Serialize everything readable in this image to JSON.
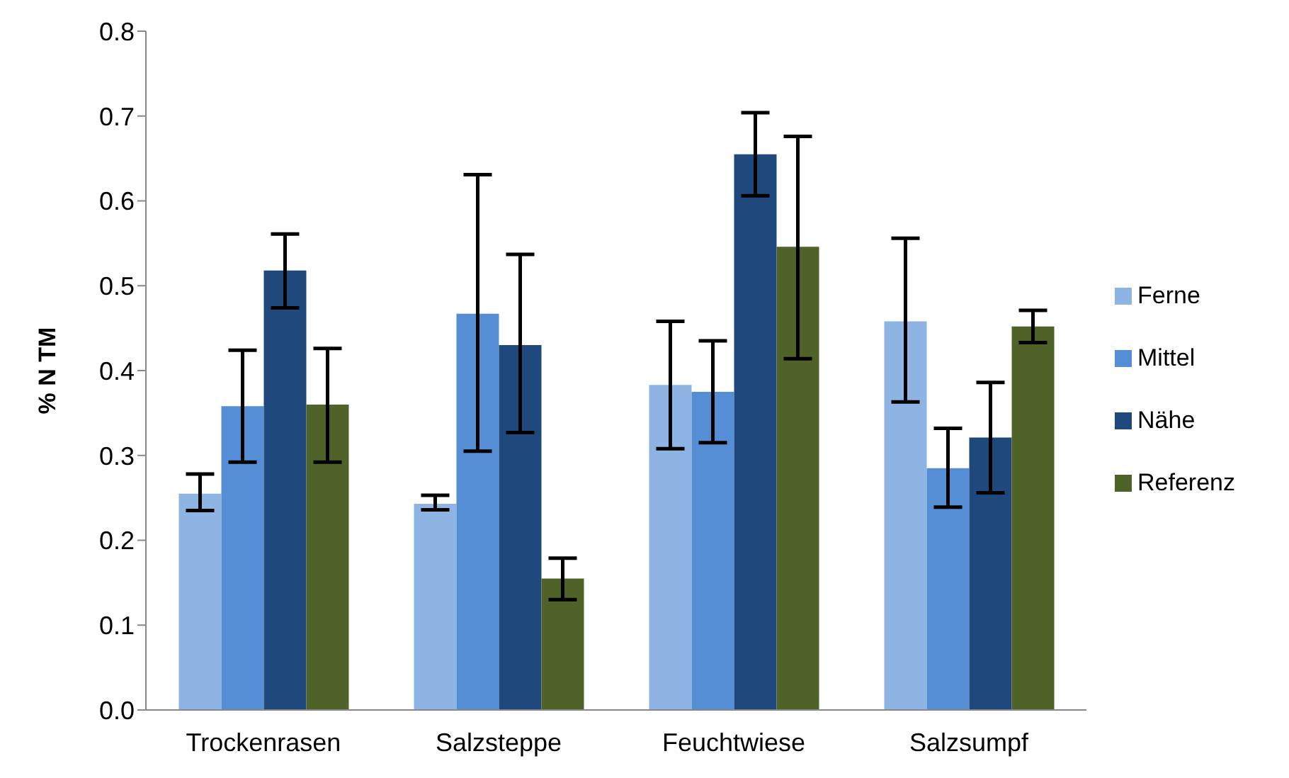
{
  "chart_data": {
    "type": "bar",
    "ylabel": "% N TM",
    "categories": [
      "Trockenrasen",
      "Salzsteppe",
      "Feuchtwiese",
      "Salzsumpf"
    ],
    "series": [
      {
        "name": "Ferne",
        "color": "#8eb4e3",
        "values": [
          0.255,
          0.243,
          0.383,
          0.458
        ],
        "errors": [
          [
            0.235,
            0.278
          ],
          [
            0.236,
            0.253
          ],
          [
            0.308,
            0.458
          ],
          [
            0.363,
            0.556
          ]
        ]
      },
      {
        "name": "Mittel",
        "color": "#558ed5",
        "values": [
          0.358,
          0.467,
          0.375,
          0.285
        ],
        "errors": [
          [
            0.292,
            0.424
          ],
          [
            0.305,
            0.631
          ],
          [
            0.315,
            0.435
          ],
          [
            0.239,
            0.332
          ]
        ]
      },
      {
        "name": "Nähe",
        "color": "#1f497d",
        "values": [
          0.518,
          0.43,
          0.655,
          0.321
        ],
        "errors": [
          [
            0.474,
            0.561
          ],
          [
            0.327,
            0.537
          ],
          [
            0.606,
            0.704
          ],
          [
            0.256,
            0.386
          ]
        ]
      },
      {
        "name": "Referenz",
        "color": "#4f6228",
        "values": [
          0.36,
          0.155,
          0.546,
          0.452
        ],
        "errors": [
          [
            0.292,
            0.426
          ],
          [
            0.13,
            0.179
          ],
          [
            0.414,
            0.676
          ],
          [
            0.433,
            0.471
          ]
        ]
      }
    ],
    "ylim": [
      0,
      0.8
    ],
    "yticks": [
      {
        "value": 0,
        "label": "0.0"
      },
      {
        "value": 0.1,
        "label": "0.1"
      },
      {
        "value": 0.2,
        "label": "0.2"
      },
      {
        "value": 0.3,
        "label": "0.3"
      },
      {
        "value": 0.4,
        "label": "0.4"
      },
      {
        "value": 0.5,
        "label": "0.5"
      },
      {
        "value": 0.6,
        "label": "0.6"
      },
      {
        "value": 0.7,
        "label": "0.7"
      },
      {
        "value": 0.8,
        "label": "0.8"
      }
    ],
    "grid": false,
    "legend": "right"
  }
}
